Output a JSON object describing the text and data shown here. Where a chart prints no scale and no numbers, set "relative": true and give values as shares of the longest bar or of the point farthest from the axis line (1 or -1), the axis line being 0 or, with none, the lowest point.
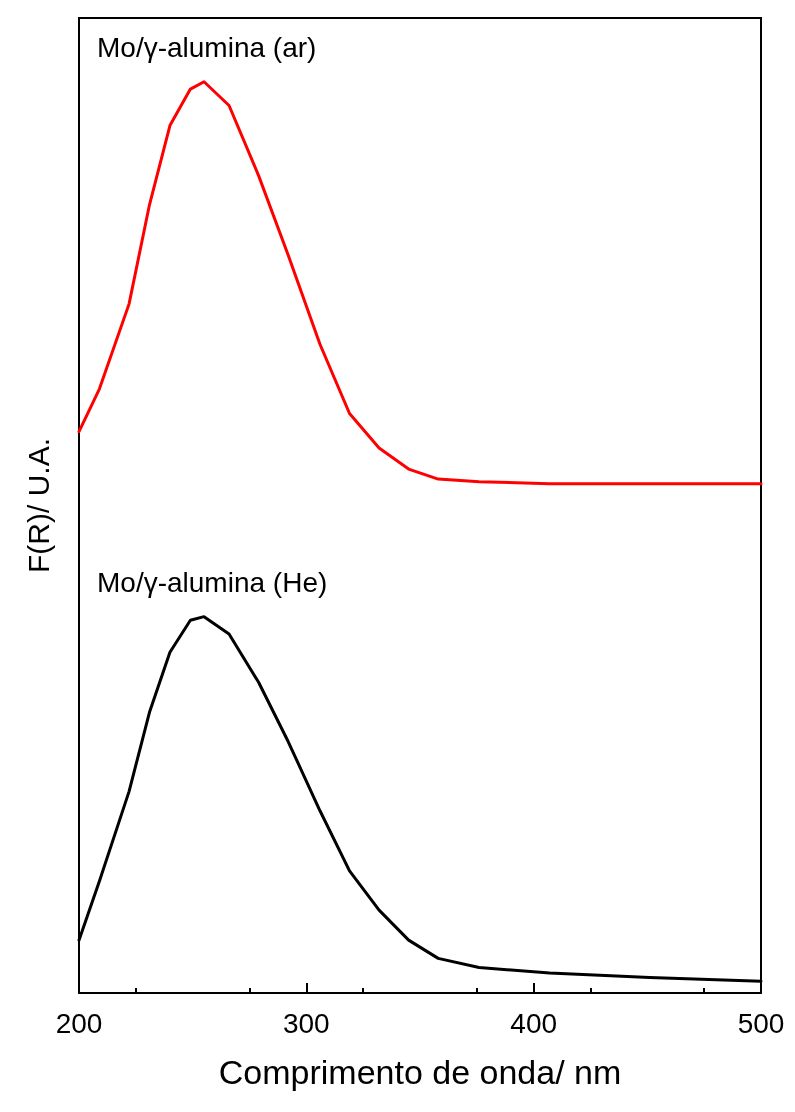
{
  "chart_data": {
    "type": "line",
    "relative": true,
    "xlabel": "Comprimento de onda/ nm",
    "ylabel": "F(R)/ U.A.",
    "xlim": [
      200,
      500
    ],
    "xticks": [
      200,
      300,
      400,
      500
    ],
    "grid": false,
    "legend": false,
    "marker": "none",
    "line_style": "solid",
    "series": [
      {
        "name": "Mo/γ-alumina (ar)",
        "color": "#ff0000",
        "x": [
          200,
          209,
          222,
          231,
          240,
          249,
          255,
          266,
          279,
          292,
          306,
          319,
          332,
          345,
          358,
          376,
          407,
          450,
          500
        ],
        "values": [
          0.616,
          0.663,
          0.756,
          0.865,
          0.952,
          0.992,
          1,
          0.974,
          0.897,
          0.81,
          0.712,
          0.636,
          0.598,
          0.575,
          0.564,
          0.561,
          0.559,
          0.559,
          0.559
        ]
      },
      {
        "name": "Mo/γ-alumina (He)",
        "color": "#000000",
        "x": [
          200,
          209,
          222,
          231,
          240,
          249,
          255,
          266,
          279,
          292,
          306,
          319,
          332,
          345,
          358,
          376,
          407,
          451,
          500
        ],
        "values": [
          0.058,
          0.123,
          0.221,
          0.308,
          0.374,
          0.409,
          0.413,
          0.394,
          0.341,
          0.276,
          0.2,
          0.134,
          0.091,
          0.058,
          0.038,
          0.028,
          0.022,
          0.017,
          0.013
        ]
      }
    ]
  }
}
